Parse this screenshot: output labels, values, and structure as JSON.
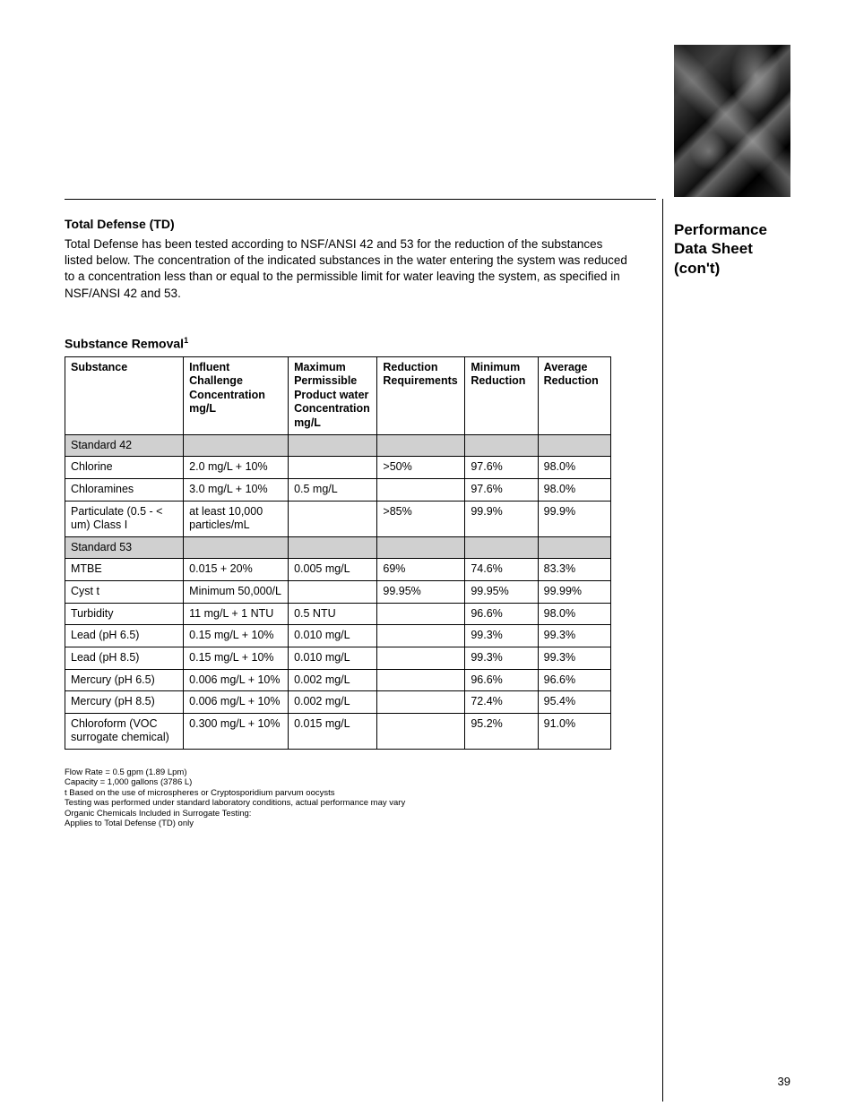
{
  "sidebar": {
    "title_line1": "Performance",
    "title_line2": "Data Sheet",
    "title_line3": "(con't)"
  },
  "section": {
    "title": "Total Defense (TD)",
    "body": "Total Defense has been tested according to NSF/ANSI 42 and 53 for the reduction of the substances listed below.  The concentration of the indicated substances in the water entering the system was reduced to a concentration less than or equal to the permissible limit for water leaving the system, as specified in NSF/ANSI 42 and 53."
  },
  "table": {
    "title": "Substance Removal",
    "title_sup": "1",
    "headers": {
      "substance": "Substance",
      "influent": "Influent Challenge Concentration mg/L",
      "max": "Maximum Permissible Product water Concentration mg/L",
      "reduction": "Reduction Requirements",
      "min": "Minimum Reduction",
      "avg": "Average Reduction"
    },
    "rows": [
      {
        "section": true,
        "substance": "Standard 42",
        "influent": "",
        "max": "",
        "reduction": "",
        "min": "",
        "avg": ""
      },
      {
        "substance": "Chlorine",
        "influent": "2.0 mg/L + 10%",
        "max": "",
        "reduction": ">50%",
        "min": "97.6%",
        "avg": "98.0%"
      },
      {
        "substance": "Chloramines",
        "influent": "3.0 mg/L + 10%",
        "max": "0.5 mg/L",
        "reduction": "",
        "min": "97.6%",
        "avg": "98.0%"
      },
      {
        "substance": "Particulate (0.5 - < um) Class I",
        "influent": "at least 10,000 particles/mL",
        "max": "",
        "reduction": ">85%",
        "min": "99.9%",
        "avg": "99.9%"
      },
      {
        "section": true,
        "substance": "Standard 53",
        "influent": "",
        "max": "",
        "reduction": "",
        "min": "",
        "avg": ""
      },
      {
        "substance": "MTBE",
        "influent": "0.015 + 20%",
        "max": "0.005 mg/L",
        "reduction": "69%",
        "min": "74.6%",
        "avg": "83.3%"
      },
      {
        "substance": "Cyst t",
        "influent": "Minimum 50,000/L",
        "max": "",
        "reduction": "99.95%",
        "min": "99.95%",
        "avg": "99.99%"
      },
      {
        "substance": "Turbidity",
        "influent": "11 mg/L + 1 NTU",
        "max": "0.5 NTU",
        "reduction": "",
        "min": "96.6%",
        "avg": "98.0%"
      },
      {
        "substance": "Lead (pH 6.5)",
        "influent": "0.15 mg/L + 10%",
        "max": "0.010 mg/L",
        "reduction": "",
        "min": "99.3%",
        "avg": "99.3%"
      },
      {
        "substance": "Lead (pH 8.5)",
        "influent": "0.15 mg/L + 10%",
        "max": "0.010 mg/L",
        "reduction": "",
        "min": "99.3%",
        "avg": "99.3%"
      },
      {
        "substance": "Mercury (pH 6.5)",
        "influent": "0.006 mg/L + 10%",
        "max": "0.002 mg/L",
        "reduction": "",
        "min": "96.6%",
        "avg": "96.6%"
      },
      {
        "substance": "Mercury (pH 8.5)",
        "influent": "0.006 mg/L + 10%",
        "max": "0.002 mg/L",
        "reduction": "",
        "min": "72.4%",
        "avg": "95.4%"
      },
      {
        "substance": "Chloroform (VOC surrogate chemical)",
        "influent": "0.300 mg/L + 10%",
        "max": "0.015 mg/L",
        "reduction": "",
        "min": "95.2%",
        "avg": "91.0%"
      }
    ]
  },
  "footnotes": [
    "Flow Rate = 0.5 gpm (1.89 Lpm)",
    "Capacity = 1,000 gallons (3786 L)",
    "t Based on the use of microspheres or Cryptosporidium parvum oocysts",
    "Testing was performed under standard laboratory conditions, actual performance may vary",
    "Organic Chemicals Included in Surrogate Testing:",
    "Applies to Total Defense (TD) only"
  ],
  "page_number": "39"
}
